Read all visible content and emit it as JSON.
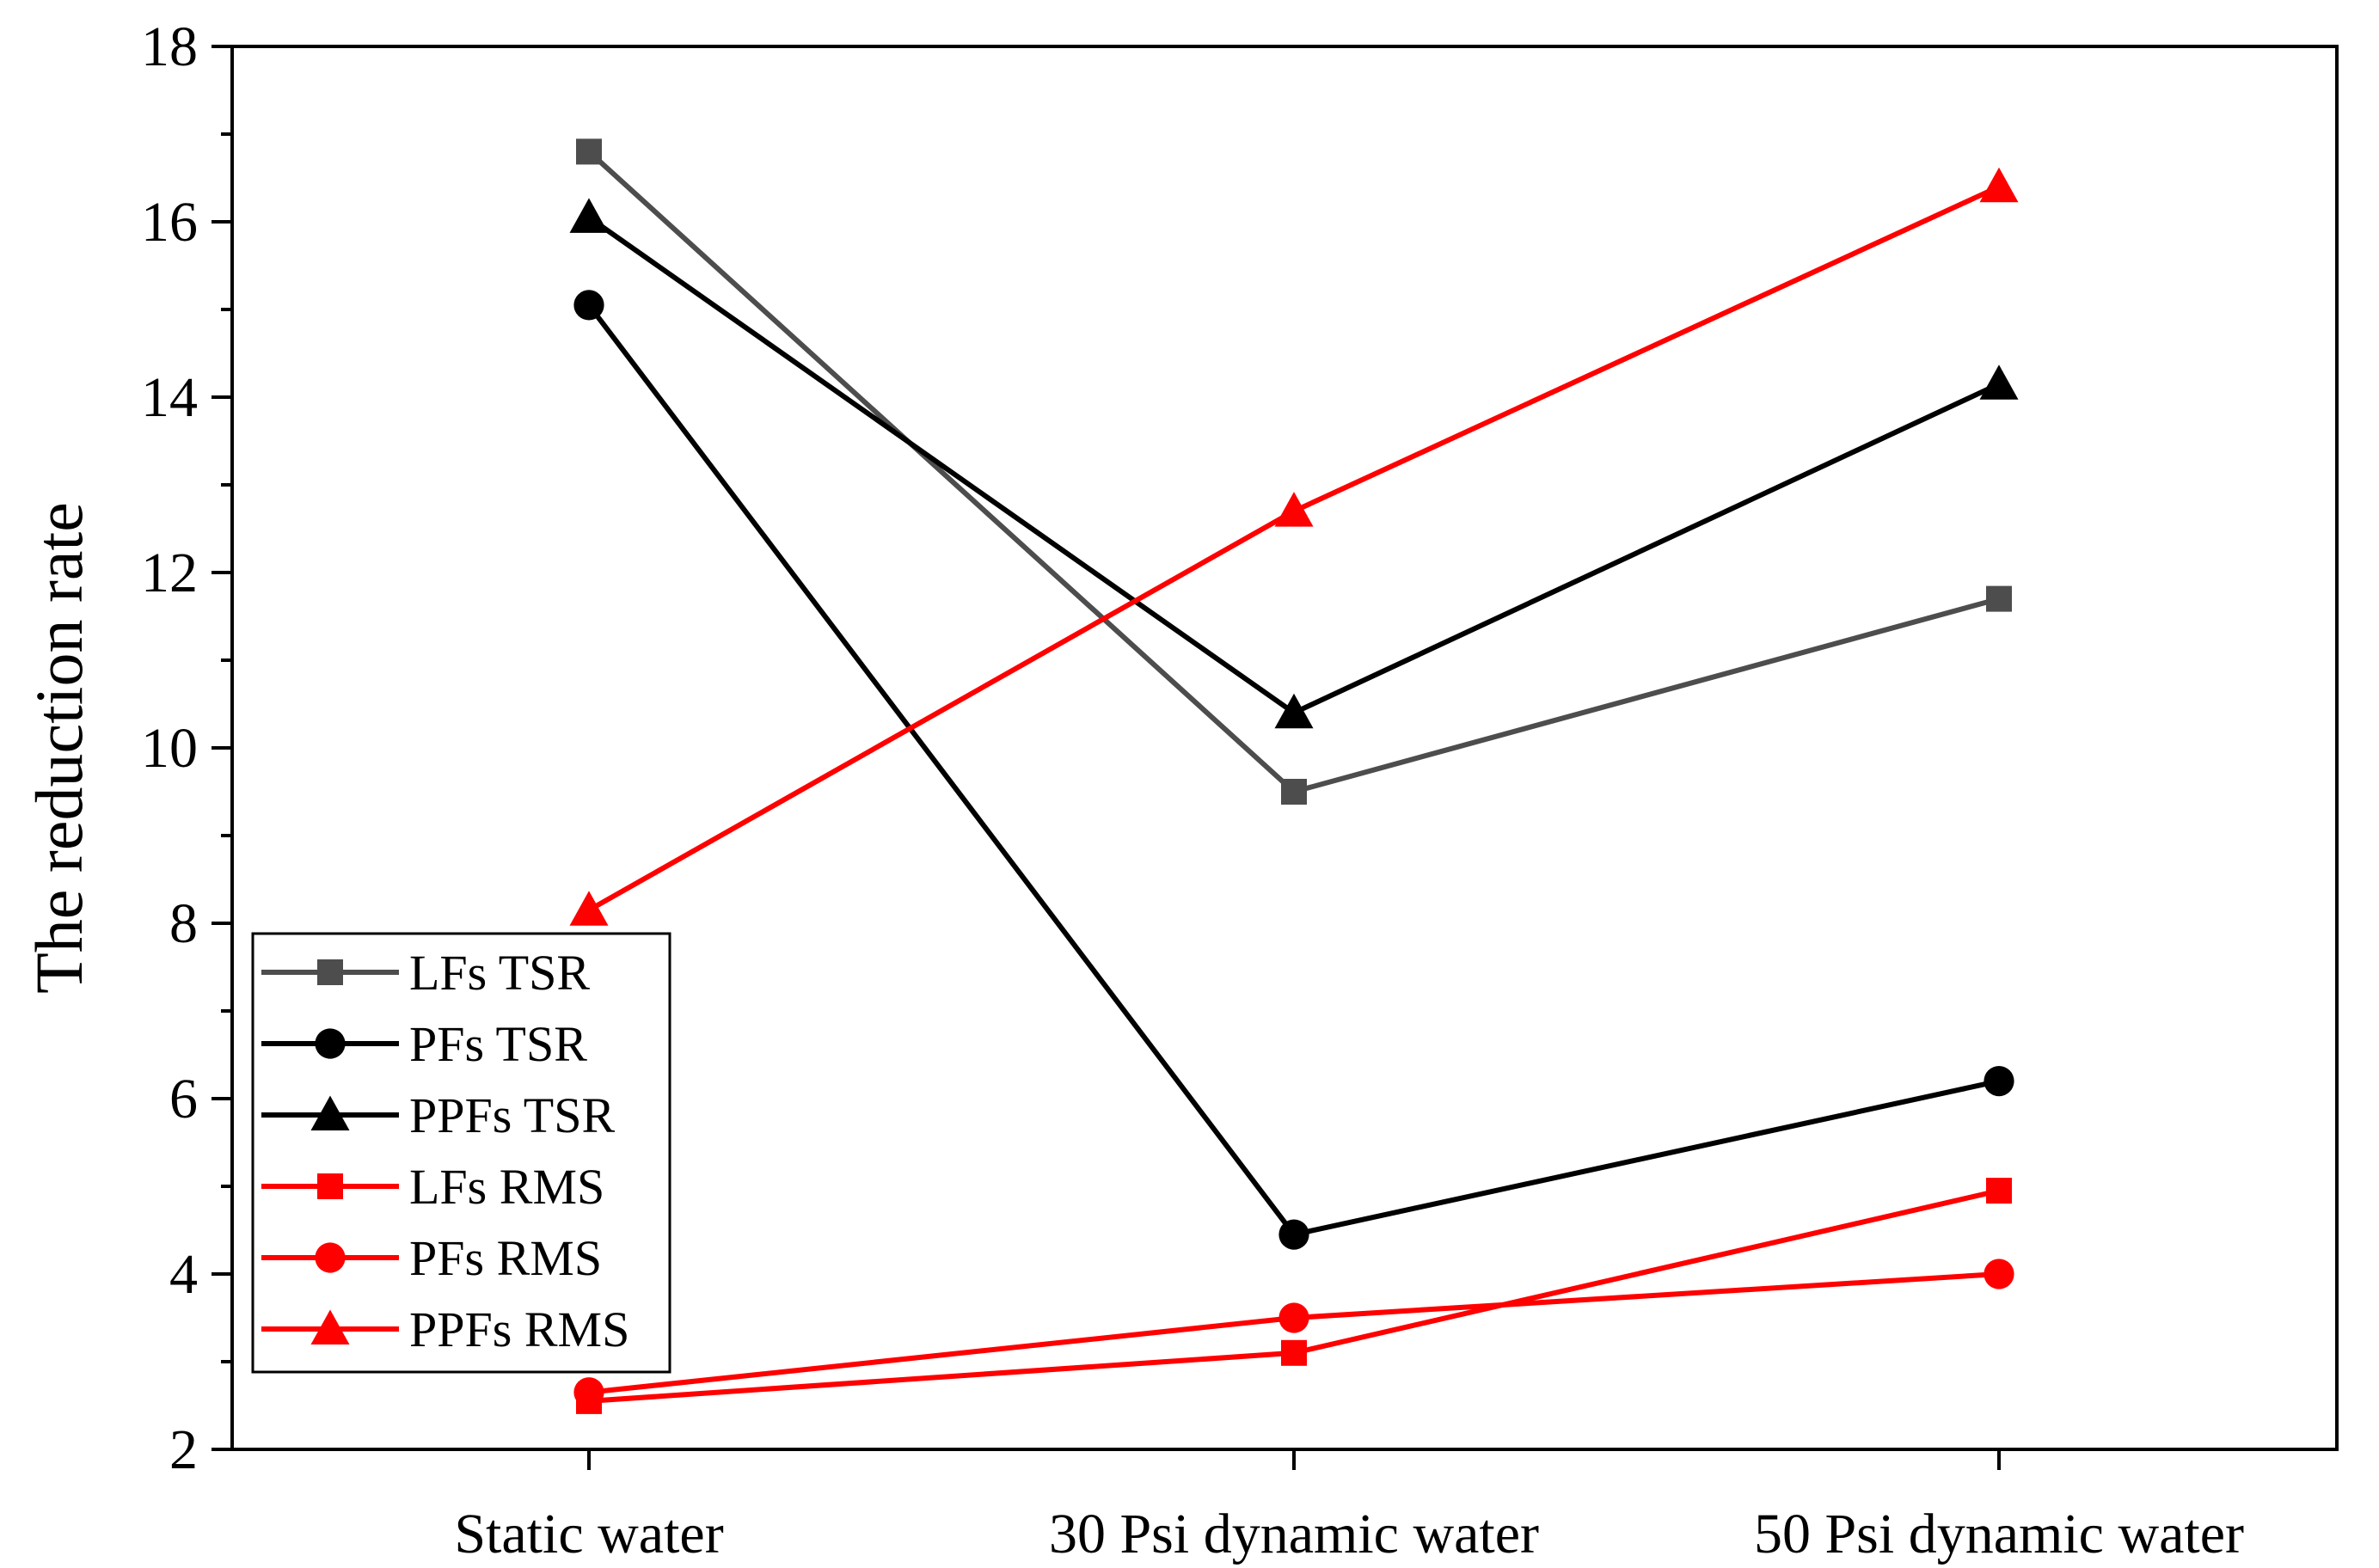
{
  "chart_data": {
    "type": "line",
    "title": "",
    "xlabel": "",
    "ylabel": "The reduction rate",
    "categories": [
      "Static water",
      "30 Psi dynamic water",
      "50 Psi dynamic water"
    ],
    "ylim": [
      2,
      18
    ],
    "yticks": [
      2,
      4,
      6,
      8,
      10,
      12,
      14,
      16,
      18
    ],
    "y_minor_step": 1,
    "grid": false,
    "legend_position": "bottom-left",
    "series": [
      {
        "name": "LFs TSR",
        "values": [
          16.8,
          9.5,
          11.7
        ],
        "color": "#4d4d4d",
        "marker": "square"
      },
      {
        "name": "PFs TSR",
        "values": [
          15.05,
          4.45,
          6.2
        ],
        "color": "#000000",
        "marker": "circle"
      },
      {
        "name": "PPFs TSR",
        "values": [
          16.05,
          10.4,
          14.15
        ],
        "color": "#000000",
        "marker": "triangle"
      },
      {
        "name": "LFs RMS",
        "values": [
          2.55,
          3.1,
          4.95
        ],
        "color": "#ff0000",
        "marker": "square"
      },
      {
        "name": "PFs RMS",
        "values": [
          2.65,
          3.5,
          4.0
        ],
        "color": "#ff0000",
        "marker": "circle"
      },
      {
        "name": "PPFs RMS",
        "values": [
          8.15,
          12.7,
          16.4
        ],
        "color": "#ff0000",
        "marker": "triangle"
      }
    ]
  }
}
